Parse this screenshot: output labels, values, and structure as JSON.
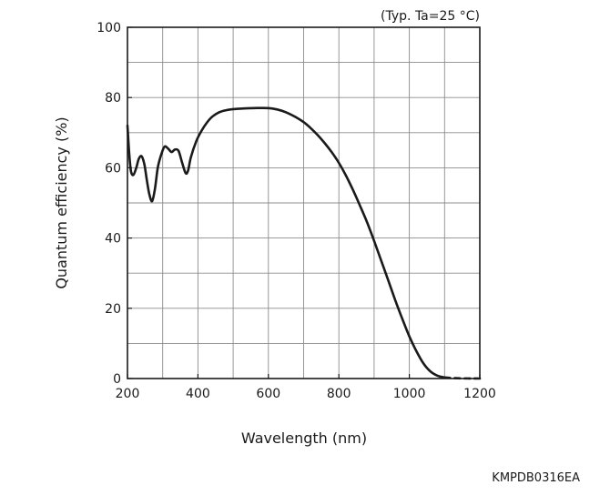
{
  "chart_data": {
    "type": "line",
    "xlabel": "Wavelength (nm)",
    "ylabel": "Quantum efficiency (%)",
    "annotation": "(Typ. Ta=25 °C)",
    "figure_code": "KMPDB0316EA",
    "xlim": [
      200,
      1200
    ],
    "ylim": [
      0,
      100
    ],
    "x_ticks": [
      "200",
      "400",
      "600",
      "800",
      "1000",
      "1200"
    ],
    "y_ticks": [
      "0",
      "20",
      "40",
      "60",
      "80",
      "100"
    ],
    "grid": true,
    "x_minor_step": 100,
    "y_minor_step": 10,
    "series": [
      {
        "style": "solid",
        "color": "#1a1a1a",
        "points": [
          [
            200,
            72
          ],
          [
            205,
            64
          ],
          [
            210,
            59
          ],
          [
            217,
            58
          ],
          [
            225,
            60
          ],
          [
            232,
            62.5
          ],
          [
            240,
            63.3
          ],
          [
            248,
            61
          ],
          [
            255,
            56.5
          ],
          [
            262,
            52.5
          ],
          [
            270,
            50.5
          ],
          [
            278,
            54
          ],
          [
            286,
            60
          ],
          [
            295,
            63.5
          ],
          [
            305,
            66
          ],
          [
            315,
            65.5
          ],
          [
            325,
            64.5
          ],
          [
            335,
            65.2
          ],
          [
            345,
            64.8
          ],
          [
            355,
            61.5
          ],
          [
            365,
            58.5
          ],
          [
            372,
            59.2
          ],
          [
            380,
            63
          ],
          [
            395,
            67.5
          ],
          [
            410,
            70.5
          ],
          [
            425,
            72.8
          ],
          [
            440,
            74.5
          ],
          [
            460,
            75.8
          ],
          [
            480,
            76.4
          ],
          [
            500,
            76.7
          ],
          [
            530,
            76.9
          ],
          [
            560,
            77
          ],
          [
            600,
            77
          ],
          [
            625,
            76.6
          ],
          [
            650,
            75.8
          ],
          [
            680,
            74.3
          ],
          [
            700,
            73
          ],
          [
            720,
            71.3
          ],
          [
            740,
            69.3
          ],
          [
            760,
            67
          ],
          [
            780,
            64.4
          ],
          [
            800,
            61.4
          ],
          [
            820,
            57.8
          ],
          [
            840,
            53.7
          ],
          [
            860,
            49.2
          ],
          [
            880,
            44.5
          ],
          [
            900,
            39.2
          ],
          [
            920,
            33.6
          ],
          [
            940,
            28
          ],
          [
            960,
            22.3
          ],
          [
            980,
            17
          ],
          [
            1000,
            12
          ],
          [
            1020,
            7.8
          ],
          [
            1040,
            4.3
          ],
          [
            1060,
            2
          ],
          [
            1080,
            0.8
          ],
          [
            1100,
            0.3
          ]
        ]
      },
      {
        "style": "dashed",
        "color": "#1a1a1a",
        "points": [
          [
            1100,
            0.3
          ],
          [
            1120,
            0.15
          ],
          [
            1140,
            0.07
          ],
          [
            1160,
            0.03
          ],
          [
            1180,
            0.01
          ],
          [
            1200,
            0
          ]
        ]
      }
    ]
  }
}
